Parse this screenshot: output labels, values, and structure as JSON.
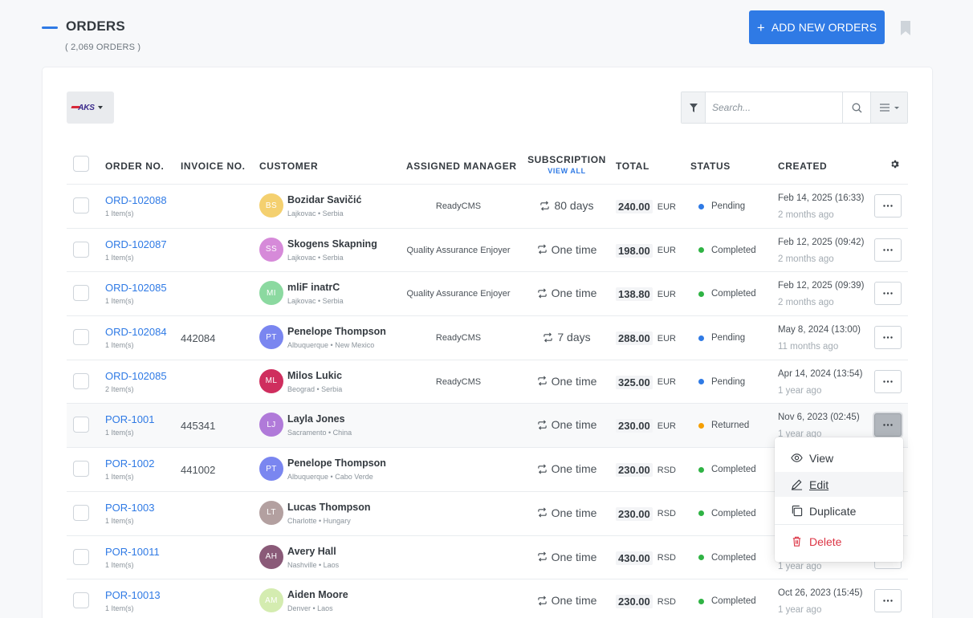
{
  "header": {
    "title": "ORDERS",
    "subtitle": "( 2,069 ORDERS )",
    "add_button": "ADD NEW ORDERS",
    "add_button_plus": "+"
  },
  "toolbar": {
    "brand_logo": "AKS",
    "search_placeholder": "Search..."
  },
  "columns": {
    "order_no": "ORDER NO.",
    "invoice_no": "INVOICE NO.",
    "customer": "CUSTOMER",
    "assigned_manager": "ASSIGNED MANAGER",
    "subscription": "SUBSCRIPTION",
    "subscription_link": "VIEW ALL",
    "total": "TOTAL",
    "status": "STATUS",
    "created": "CREATED"
  },
  "status_colors": {
    "Pending": "#2f7ae5",
    "Completed": "#2fb344",
    "Returned": "#f59f00"
  },
  "rows": [
    {
      "order": "ORD-102088",
      "items": "1 Item(s)",
      "invoice": "",
      "initials": "BS",
      "avatar_color": "#f4d06f",
      "name": "Bozidar Savičić",
      "location": "Lajkovac • Serbia",
      "manager": "ReadyCMS",
      "subscription": "80 days",
      "amount": "240.00",
      "currency": "EUR",
      "status": "Pending",
      "created": "Feb 14, 2025 (16:33)",
      "ago": "2 months ago"
    },
    {
      "order": "ORD-102087",
      "items": "1 Item(s)",
      "invoice": "",
      "initials": "SS",
      "avatar_color": "#d68ad9",
      "name": "Skogens Skapning",
      "location": "Lajkovac • Serbia",
      "manager": "Quality Assurance Enjoyer",
      "subscription": "One time",
      "amount": "198.00",
      "currency": "EUR",
      "status": "Completed",
      "created": "Feb 12, 2025 (09:42)",
      "ago": "2 months ago"
    },
    {
      "order": "ORD-102085",
      "items": "1 Item(s)",
      "invoice": "",
      "initials": "MI",
      "avatar_color": "#8bd9a0",
      "name": "mliF inatrC",
      "location": "Lajkovac • Serbia",
      "manager": "Quality Assurance Enjoyer",
      "subscription": "One time",
      "amount": "138.80",
      "currency": "EUR",
      "status": "Completed",
      "created": "Feb 12, 2025 (09:39)",
      "ago": "2 months ago"
    },
    {
      "order": "ORD-102084",
      "items": "1 Item(s)",
      "invoice": "442084",
      "initials": "PT",
      "avatar_color": "#7a86f0",
      "name": "Penelope Thompson",
      "location": "Albuquerque • New Mexico",
      "manager": "ReadyCMS",
      "subscription": "7 days",
      "amount": "288.00",
      "currency": "EUR",
      "status": "Pending",
      "created": "May 8, 2024 (13:00)",
      "ago": "11 months ago"
    },
    {
      "order": "ORD-102085",
      "items": "2 Item(s)",
      "invoice": "",
      "initials": "ML",
      "avatar_color": "#cf2e5e",
      "name": "Milos Lukic",
      "location": "Beograd • Serbia",
      "manager": "ReadyCMS",
      "subscription": "One time",
      "amount": "325.00",
      "currency": "EUR",
      "status": "Pending",
      "created": "Apr 14, 2024 (13:54)",
      "ago": "1 year ago"
    },
    {
      "order": "POR-1001",
      "items": "1 Item(s)",
      "invoice": "445341",
      "initials": "LJ",
      "avatar_color": "#b07ad9",
      "name": "Layla Jones",
      "location": "Sacramento • China",
      "manager": "",
      "subscription": "One time",
      "amount": "230.00",
      "currency": "EUR",
      "status": "Returned",
      "created": "Nov 6, 2023 (02:45)",
      "ago": "1 year ago"
    },
    {
      "order": "POR-1002",
      "items": "1 Item(s)",
      "invoice": "441002",
      "initials": "PT",
      "avatar_color": "#7a86f0",
      "name": "Penelope Thompson",
      "location": "Albuquerque • Cabo Verde",
      "manager": "",
      "subscription": "One time",
      "amount": "230.00",
      "currency": "RSD",
      "status": "Completed",
      "created": "",
      "ago": ""
    },
    {
      "order": "POR-1003",
      "items": "1 Item(s)",
      "invoice": "",
      "initials": "LT",
      "avatar_color": "#b3a0a0",
      "name": "Lucas Thompson",
      "location": "Charlotte • Hungary",
      "manager": "",
      "subscription": "One time",
      "amount": "230.00",
      "currency": "RSD",
      "status": "Completed",
      "created": "",
      "ago": ""
    },
    {
      "order": "POR-10011",
      "items": "1 Item(s)",
      "invoice": "",
      "initials": "AH",
      "avatar_color": "#8a5a78",
      "name": "Avery Hall",
      "location": "Nashville • Laos",
      "manager": "",
      "subscription": "One time",
      "amount": "430.00",
      "currency": "RSD",
      "status": "Completed",
      "created": "",
      "ago": "1 year ago"
    },
    {
      "order": "POR-10013",
      "items": "1 Item(s)",
      "invoice": "",
      "initials": "AM",
      "avatar_color": "#d4ecb0",
      "name": "Aiden Moore",
      "location": "Denver • Laos",
      "manager": "",
      "subscription": "One time",
      "amount": "230.00",
      "currency": "RSD",
      "status": "Completed",
      "created": "Oct 26, 2023 (15:45)",
      "ago": "1 year ago"
    }
  ],
  "row_menu": {
    "view": "View",
    "edit": "Edit",
    "duplicate": "Duplicate",
    "delete": "Delete"
  }
}
